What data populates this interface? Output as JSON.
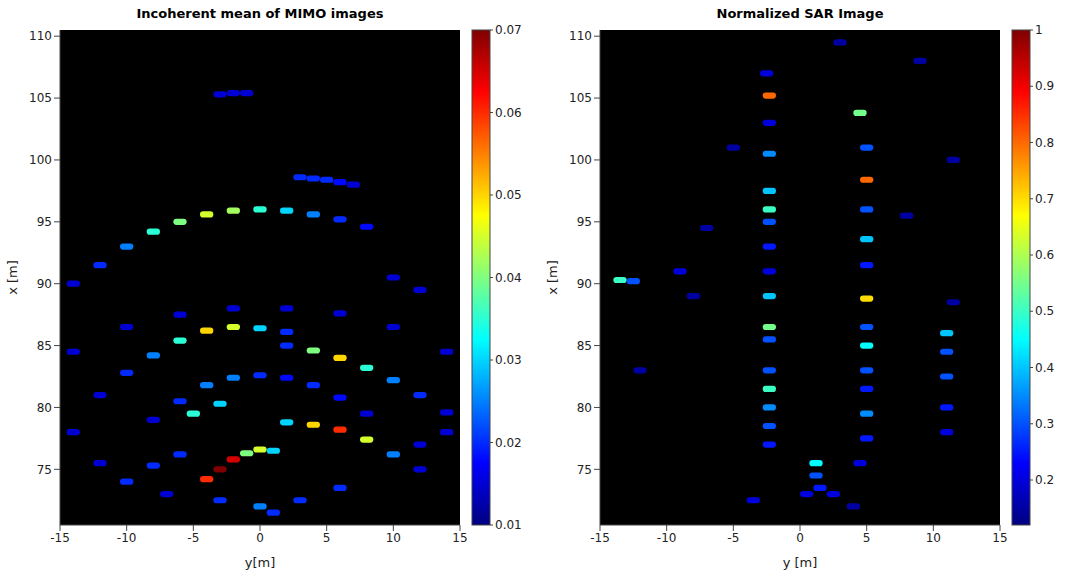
{
  "chart_data": [
    {
      "type": "heatmap",
      "title": "Incoherent mean of MIMO images",
      "x_label": "y[m]",
      "y_label": "x [m]",
      "xlim": [
        -15,
        15
      ],
      "ylim": [
        70.5,
        110.5
      ],
      "xticks": [
        -15,
        -10,
        -5,
        0,
        5,
        10,
        15
      ],
      "yticks": [
        75,
        80,
        85,
        90,
        95,
        100,
        105,
        110
      ],
      "grid": false,
      "cell_size": [
        1,
        0.5
      ],
      "colorbar": {
        "range": [
          0.01,
          0.07
        ],
        "ticks": [
          0.01,
          0.02,
          0.03,
          0.04,
          0.05,
          0.06,
          0.07
        ]
      },
      "cells": [
        [
          -3,
          105.3,
          0.015
        ],
        [
          -2,
          105.4,
          0.015
        ],
        [
          -1,
          105.4,
          0.015
        ],
        [
          3,
          98.6,
          0.02
        ],
        [
          4,
          98.5,
          0.02
        ],
        [
          5,
          98.4,
          0.02
        ],
        [
          6,
          98.2,
          0.018
        ],
        [
          7,
          98,
          0.015
        ],
        [
          -14,
          90,
          0.015
        ],
        [
          -12,
          91.5,
          0.02
        ],
        [
          -10,
          93,
          0.025
        ],
        [
          -8,
          94.2,
          0.035
        ],
        [
          -6,
          95,
          0.04
        ],
        [
          -4,
          95.6,
          0.045
        ],
        [
          -2,
          95.9,
          0.042
        ],
        [
          0,
          96,
          0.035
        ],
        [
          2,
          95.9,
          0.03
        ],
        [
          4,
          95.6,
          0.025
        ],
        [
          6,
          95.2,
          0.02
        ],
        [
          8,
          94.6,
          0.018
        ],
        [
          10,
          90.5,
          0.015
        ],
        [
          12,
          89.5,
          0.015
        ],
        [
          -14,
          84.5,
          0.015
        ],
        [
          -10,
          86.5,
          0.015
        ],
        [
          -6,
          87.5,
          0.015
        ],
        [
          -2,
          88,
          0.015
        ],
        [
          2,
          88,
          0.015
        ],
        [
          6,
          87.6,
          0.015
        ],
        [
          10,
          86.5,
          0.015
        ],
        [
          14,
          84.5,
          0.015
        ],
        [
          -12,
          81,
          0.015
        ],
        [
          -10,
          82.8,
          0.02
        ],
        [
          -8,
          84.2,
          0.025
        ],
        [
          -6,
          85.4,
          0.035
        ],
        [
          -4,
          86.2,
          0.05
        ],
        [
          -2,
          86.5,
          0.045
        ],
        [
          0,
          86.4,
          0.03
        ],
        [
          2,
          86.1,
          0.02
        ],
        [
          2,
          85,
          0.02
        ],
        [
          4,
          84.6,
          0.04
        ],
        [
          6,
          84,
          0.05
        ],
        [
          8,
          83.2,
          0.035
        ],
        [
          10,
          82.2,
          0.025
        ],
        [
          12,
          81,
          0.02
        ],
        [
          14,
          79.6,
          0.015
        ],
        [
          -8,
          79,
          0.015
        ],
        [
          -6,
          80.5,
          0.02
        ],
        [
          -4,
          81.8,
          0.025
        ],
        [
          -2,
          82.4,
          0.025
        ],
        [
          0,
          82.6,
          0.02
        ],
        [
          2,
          82.4,
          0.018
        ],
        [
          4,
          81.8,
          0.02
        ],
        [
          6,
          80.8,
          0.018
        ],
        [
          8,
          79.5,
          0.015
        ],
        [
          -5,
          79.5,
          0.035
        ],
        [
          -3,
          80.3,
          0.03
        ],
        [
          2,
          78.8,
          0.03
        ],
        [
          4,
          78.6,
          0.05
        ],
        [
          6,
          78.2,
          0.06
        ],
        [
          8,
          77.4,
          0.045
        ],
        [
          10,
          76.2,
          0.025
        ],
        [
          -4,
          74.2,
          0.06
        ],
        [
          -3,
          75,
          0.07
        ],
        [
          -2,
          75.8,
          0.065
        ],
        [
          -1,
          76.3,
          0.04
        ],
        [
          0,
          76.6,
          0.045
        ],
        [
          1,
          76.5,
          0.03
        ],
        [
          -10,
          74,
          0.02
        ],
        [
          -8,
          75.3,
          0.02
        ],
        [
          -6,
          76.2,
          0.02
        ],
        [
          -3,
          72.5,
          0.02
        ],
        [
          0,
          72,
          0.025
        ],
        [
          1,
          71.5,
          0.02
        ],
        [
          3,
          72.5,
          0.02
        ],
        [
          6,
          73.5,
          0.02
        ],
        [
          -7,
          73,
          0.015
        ],
        [
          -14,
          78,
          0.015
        ],
        [
          14,
          78,
          0.015
        ],
        [
          -12,
          75.5,
          0.015
        ],
        [
          12,
          75,
          0.015
        ],
        [
          12,
          77,
          0.015
        ]
      ]
    },
    {
      "type": "heatmap",
      "title": "Normalized SAR Image",
      "x_label": "y [m]",
      "y_label": "x [m]",
      "xlim": [
        -15,
        15
      ],
      "ylim": [
        70.5,
        110.5
      ],
      "xticks": [
        -15,
        -10,
        -5,
        0,
        5,
        10,
        15
      ],
      "yticks": [
        75,
        80,
        85,
        90,
        95,
        100,
        105,
        110
      ],
      "grid": false,
      "cell_size": [
        1,
        0.5
      ],
      "colorbar": {
        "range": [
          0.12,
          1
        ],
        "ticks": [
          0.2,
          0.3,
          0.4,
          0.5,
          0.6,
          0.7,
          0.8,
          0.9,
          1
        ]
      },
      "cells": [
        [
          -2.3,
          105.2,
          0.8
        ],
        [
          -2.3,
          103,
          0.2
        ],
        [
          -2.3,
          100.5,
          0.35
        ],
        [
          -2.3,
          97.5,
          0.4
        ],
        [
          -2.3,
          96,
          0.5
        ],
        [
          -2.3,
          95,
          0.3
        ],
        [
          -2.3,
          93,
          0.25
        ],
        [
          -2.3,
          91,
          0.2
        ],
        [
          -2.3,
          89,
          0.4
        ],
        [
          -2.3,
          86.5,
          0.55
        ],
        [
          -2.3,
          85.5,
          0.3
        ],
        [
          -2.3,
          83,
          0.3
        ],
        [
          -2.3,
          81.5,
          0.5
        ],
        [
          -2.3,
          80,
          0.35
        ],
        [
          -2.3,
          78.5,
          0.3
        ],
        [
          -2.3,
          77,
          0.25
        ],
        [
          -3.5,
          72.5,
          0.2
        ],
        [
          4.5,
          103.8,
          0.55
        ],
        [
          5,
          101,
          0.3
        ],
        [
          5,
          98.4,
          0.8
        ],
        [
          5,
          96,
          0.3
        ],
        [
          5,
          93.6,
          0.4
        ],
        [
          5,
          91.5,
          0.25
        ],
        [
          5,
          88.8,
          0.7
        ],
        [
          5,
          86.5,
          0.3
        ],
        [
          5,
          85,
          0.45
        ],
        [
          5,
          83,
          0.3
        ],
        [
          5,
          81.5,
          0.25
        ],
        [
          5,
          79.5,
          0.35
        ],
        [
          5,
          77.5,
          0.25
        ],
        [
          4.5,
          75.5,
          0.2
        ],
        [
          4,
          72,
          0.15
        ],
        [
          11,
          86,
          0.4
        ],
        [
          11,
          84.5,
          0.3
        ],
        [
          11,
          82.5,
          0.3
        ],
        [
          11,
          80,
          0.25
        ],
        [
          11,
          78,
          0.2
        ],
        [
          11.5,
          88.5,
          0.15
        ],
        [
          11.5,
          100,
          0.15
        ],
        [
          -13.5,
          90.3,
          0.5
        ],
        [
          -12.5,
          90.2,
          0.3
        ],
        [
          -9,
          91,
          0.2
        ],
        [
          -12,
          83,
          0.15
        ],
        [
          -8,
          89,
          0.15
        ],
        [
          1.2,
          75.5,
          0.45
        ],
        [
          1.2,
          74.5,
          0.3
        ],
        [
          1.5,
          73.5,
          0.25
        ],
        [
          2.5,
          73,
          0.2
        ],
        [
          0.5,
          73,
          0.2
        ],
        [
          -7,
          94.5,
          0.15
        ],
        [
          8,
          95.5,
          0.15
        ],
        [
          -5,
          101,
          0.15
        ],
        [
          3,
          109.5,
          0.15
        ],
        [
          -2.5,
          107,
          0.2
        ],
        [
          9,
          108,
          0.15
        ]
      ]
    }
  ]
}
